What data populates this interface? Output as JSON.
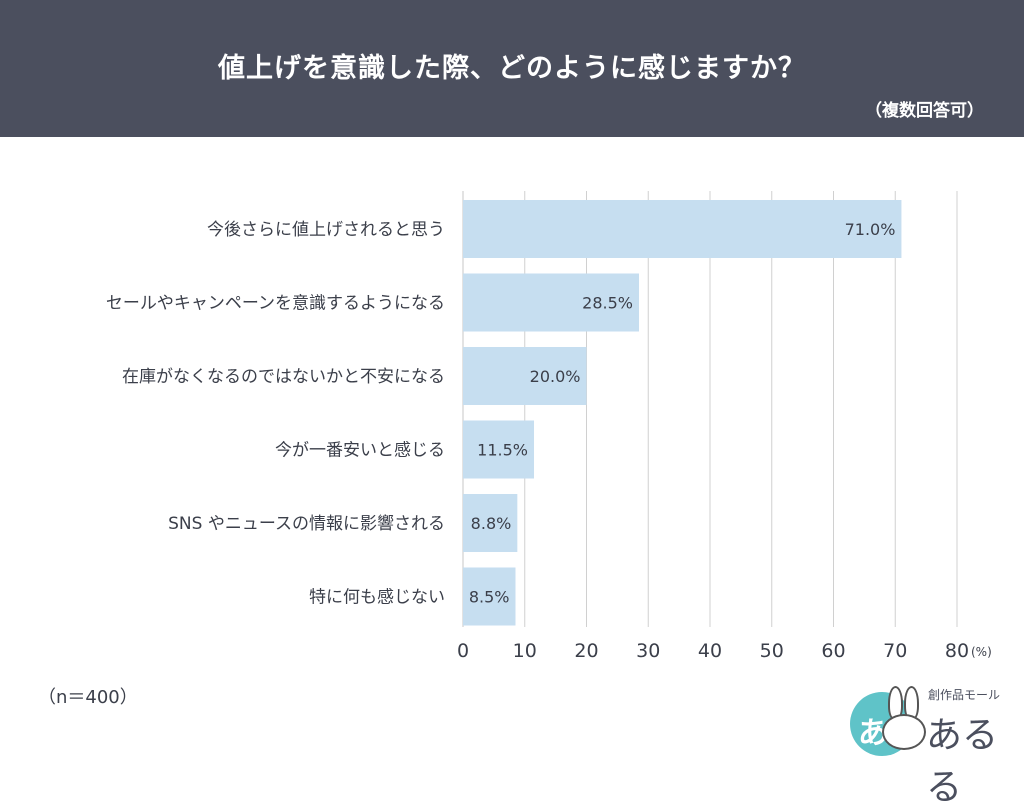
{
  "header": {
    "title": "値上げを意識した際、どのように感じますか？",
    "subtitle": "（複数回答可）"
  },
  "footer": {
    "sample_note": "（n＝400）",
    "logo_small": "創作品モール",
    "logo_name": "あるる",
    "logo_glyph": "あ"
  },
  "colors": {
    "header_bg": "#4b4f5e",
    "bar": "#c6def0",
    "text": "#3b3f4a",
    "grid": "#d0d0d0",
    "logo_badge": "#5fc3c8"
  },
  "chart_data": {
    "type": "bar",
    "orientation": "horizontal",
    "categories": [
      "今後さらに値上げされると思う",
      "セールやキャンペーンを意識するようになる",
      "在庫がなくなるのではないかと不安になる",
      "今が一番安いと感じる",
      "SNS やニュースの情報に影響される",
      "特に何も感じない"
    ],
    "values": [
      71.0,
      28.5,
      20.0,
      11.5,
      8.8,
      8.5
    ],
    "value_labels": [
      "71.0%",
      "28.5%",
      "20.0%",
      "11.5%",
      "8.8%",
      "8.5%"
    ],
    "xlim": [
      0,
      80
    ],
    "xticks": [
      "0",
      "10",
      "20",
      "30",
      "40",
      "50",
      "60",
      "70",
      "80"
    ],
    "tick_values": [
      0,
      10,
      20,
      30,
      40,
      50,
      60,
      70,
      80
    ],
    "unit_label": "(%)",
    "grid": true
  }
}
